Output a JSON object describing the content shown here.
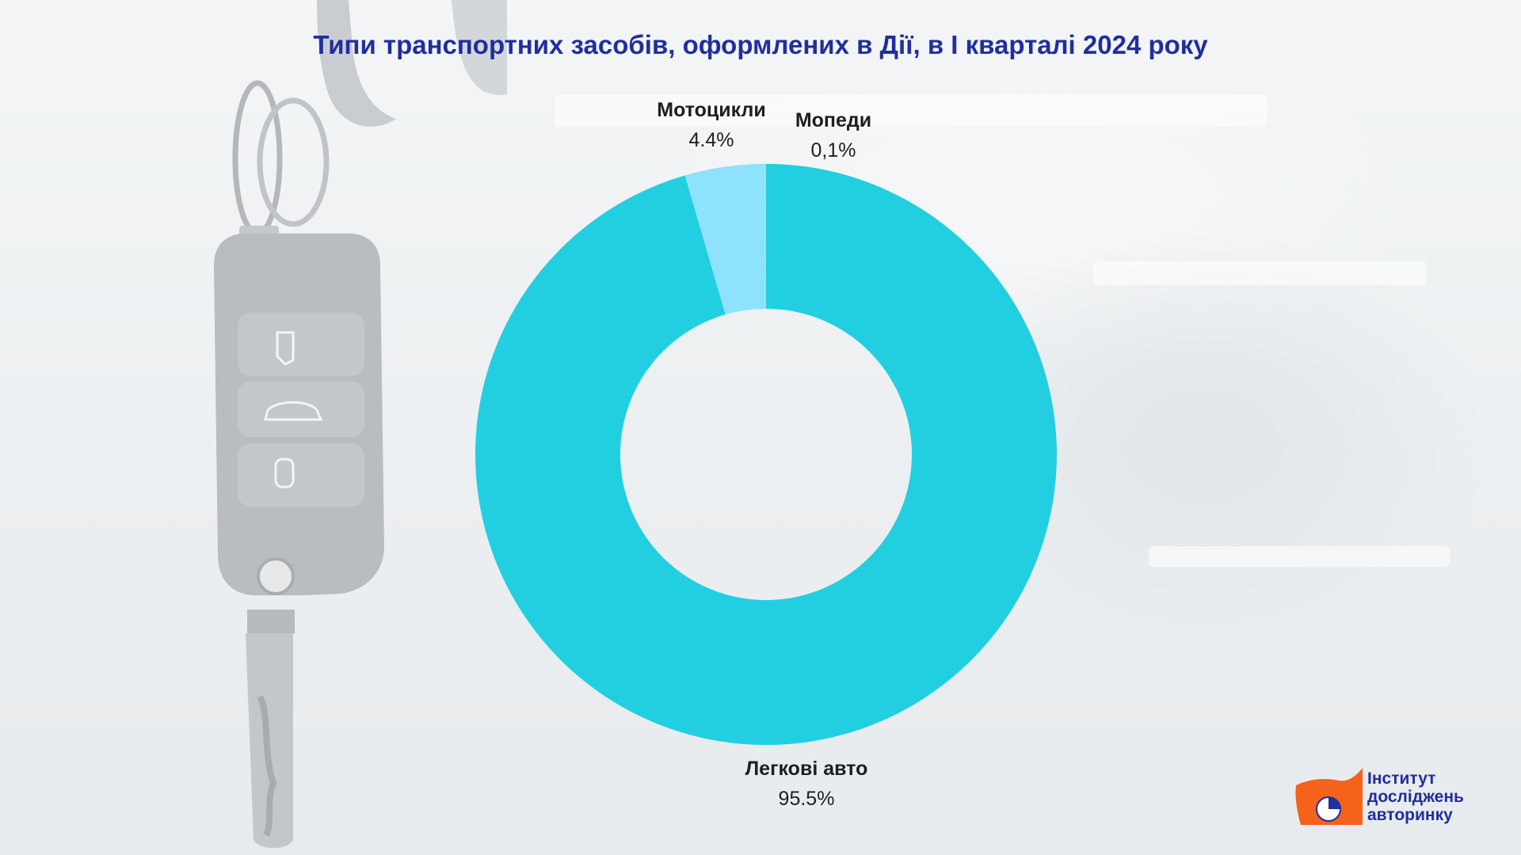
{
  "chart_data": {
    "type": "pie",
    "title": "Типи транспортних засобів, оформлених в Дії, в І кварталі 2024 року",
    "donut": true,
    "slices": [
      {
        "label": "Мопеди",
        "value": 0.1,
        "value_text": "0,1%",
        "color": "#9ae2f6"
      },
      {
        "label": "Мотоцикли",
        "value": 4.4,
        "value_text": "4.4%",
        "color": "#8ee2fb"
      },
      {
        "label": "Легкові авто",
        "value": 95.5,
        "value_text": "95.5%",
        "color": "#22cfe1"
      }
    ]
  },
  "logo": {
    "line1": "Інститут",
    "line2": "досліджень",
    "line3": "авторинку",
    "colors": {
      "mark": "#f4621c",
      "text": "#1f2f9e",
      "accent": "#1f2f9e"
    }
  },
  "background": {
    "illustration": "car-key-fob-icon"
  }
}
